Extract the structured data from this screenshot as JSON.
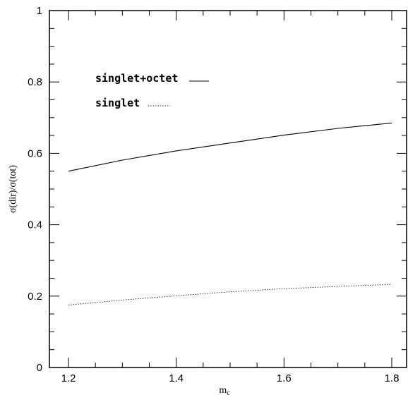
{
  "chart_data": {
    "type": "line",
    "title": "",
    "xlabel": "m",
    "xlabel_subscript": "c",
    "ylabel": "σ(dir)/σ(tot)",
    "xlim": [
      1.2,
      1.8
    ],
    "ylim": [
      0,
      1
    ],
    "x_ticks": [
      "1.2",
      "1.4",
      "1.6",
      "1.8"
    ],
    "y_ticks": [
      "0",
      "0.2",
      "0.4",
      "0.6",
      "0.8",
      "1"
    ],
    "grid": false,
    "legend_position": "upper-left",
    "series": [
      {
        "name": "singlet+octet",
        "style": "solid",
        "x": [
          1.2,
          1.3,
          1.4,
          1.5,
          1.6,
          1.7,
          1.8
        ],
        "y": [
          0.55,
          0.581,
          0.607,
          0.629,
          0.651,
          0.67,
          0.685
        ]
      },
      {
        "name": "singlet",
        "style": "dotted",
        "x": [
          1.2,
          1.3,
          1.4,
          1.5,
          1.6,
          1.7,
          1.8
        ],
        "y": [
          0.175,
          0.189,
          0.201,
          0.212,
          0.221,
          0.227,
          0.233
        ]
      }
    ]
  }
}
